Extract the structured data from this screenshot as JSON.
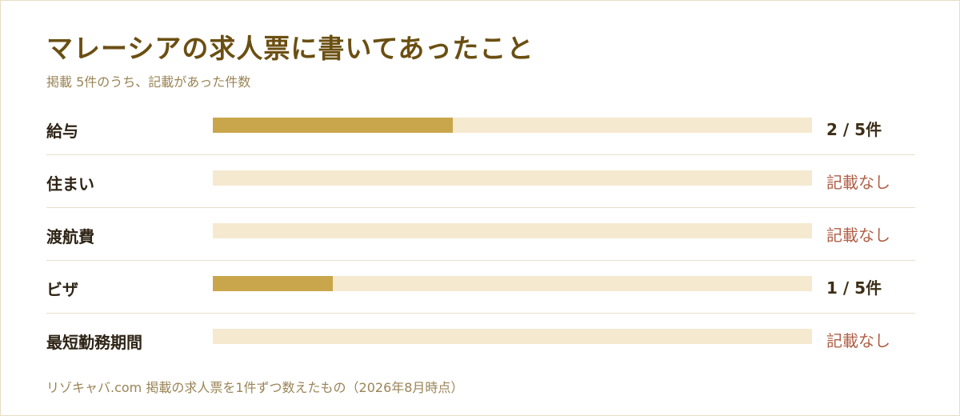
{
  "chart_data": {
    "type": "bar",
    "orientation": "horizontal",
    "title": "マレーシアの求人票に書いてあったこと",
    "subtitle": "掲載 5件のうち、記載があった件数",
    "total": 5,
    "categories": [
      "給与",
      "住まい",
      "渡航費",
      "ビザ",
      "最短勤務期間"
    ],
    "values": [
      2,
      0,
      0,
      1,
      0
    ],
    "value_labels": [
      "2 / 5件",
      "記載なし",
      "記載なし",
      "1 / 5件",
      "記載なし"
    ],
    "xlim": [
      0,
      5
    ],
    "grid": false,
    "legend": "none",
    "colors": {
      "fill": "#c9a64b",
      "track": "#f5e9d0",
      "none_text": "#b05f47",
      "title": "#6b4f12"
    },
    "footnote": "リゾキャバ.com 掲載の求人票を1件ずつ数えたもの（2026年8月時点）"
  }
}
